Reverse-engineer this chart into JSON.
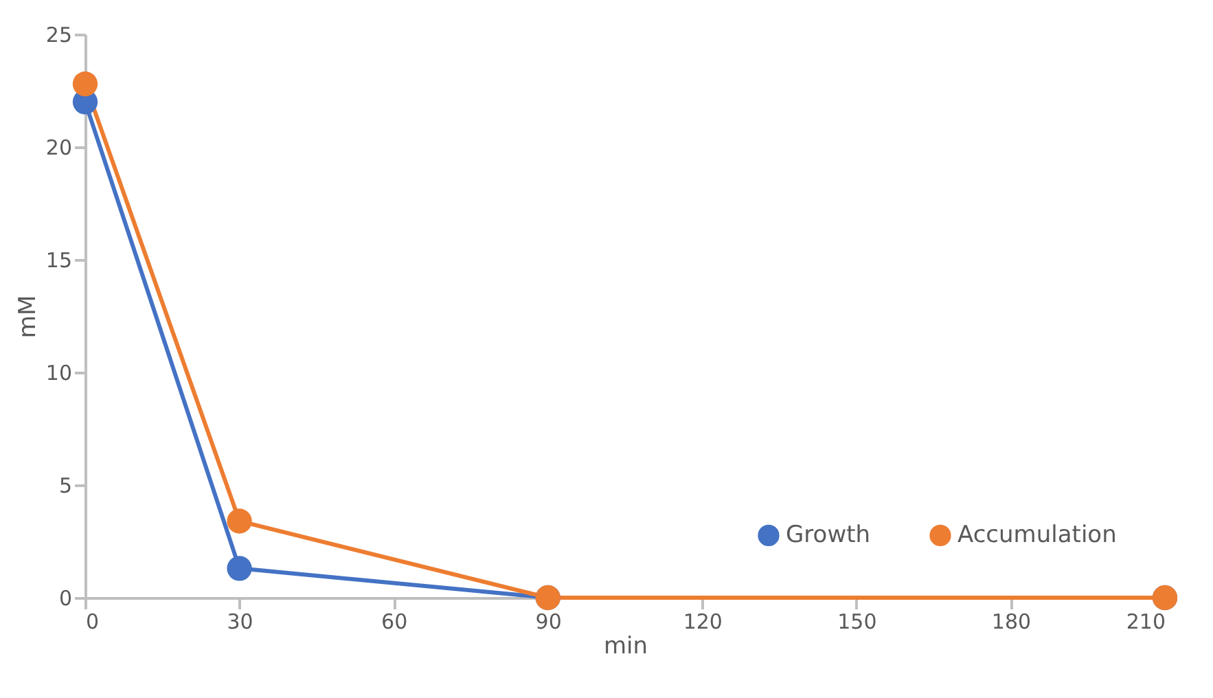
{
  "chart_data": {
    "type": "line",
    "xlabel": "min",
    "ylabel": "mM",
    "x": [
      0,
      30,
      90,
      210
    ],
    "series": [
      {
        "name": "Growth",
        "color": "#4472c4",
        "values": [
          22.0,
          1.3,
          0,
          0
        ]
      },
      {
        "name": "Accumulation",
        "color": "#ed7d31",
        "values": [
          22.8,
          3.4,
          0,
          0
        ]
      }
    ],
    "xlim": [
      0,
      210
    ],
    "xticks": [
      0,
      30,
      60,
      90,
      120,
      150,
      180,
      210
    ],
    "ylim": [
      0,
      25
    ],
    "yticks": [
      0,
      5,
      10,
      15,
      20,
      25
    ],
    "grid": false,
    "legend": "bottom right",
    "marker": "circle",
    "line_style": "solid"
  }
}
